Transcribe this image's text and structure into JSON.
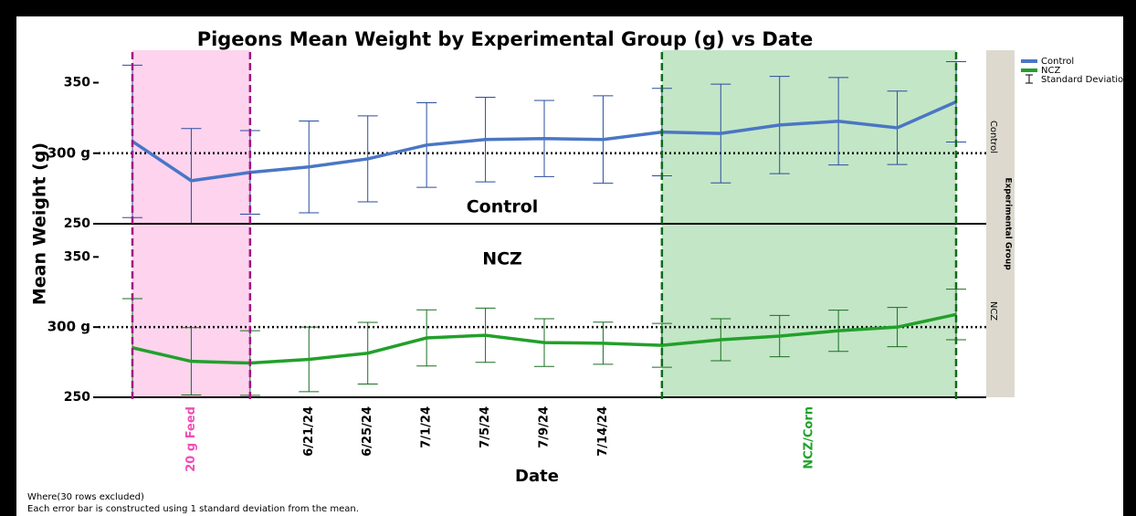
{
  "chart_data": {
    "type": "line",
    "title": "Pigeons Mean Weight by Experimental Group (g) vs Date",
    "x_label": "Date",
    "y_label": "Mean Weight (g)",
    "group_label": "Experimental Group",
    "error_label": "Standard Deviation",
    "categories": [
      null,
      null,
      null,
      "6/21/24",
      "6/25/24",
      "7/1/24",
      "7/5/24",
      "7/9/24",
      "7/14/24",
      null,
      null,
      null,
      null,
      null,
      null
    ],
    "ylim": [
      250,
      373
    ],
    "yticks": [
      250,
      {
        "value": 300,
        "label": "300 g"
      },
      350
    ],
    "reference_line": 300,
    "regions": [
      {
        "label": "20 g Feed",
        "start": 0,
        "end": 2,
        "color": "#fdd3ee",
        "line_color": "#a01683",
        "label_color": "#ee4fb6"
      },
      {
        "label": "NCZ/Corn",
        "start": 9,
        "end": 14,
        "color": "#c3e6c6",
        "line_color": "#0f6b1c",
        "label_color": "#1fa22a"
      }
    ],
    "series": [
      {
        "name": "Control",
        "color": "#4a76c4",
        "bar_color": "#2b4d9e",
        "values": [
          308.4,
          280.5,
          286.4,
          290.3,
          296,
          305.8,
          309.7,
          310.4,
          309.7,
          315,
          314,
          320,
          322.7,
          318,
          336.4
        ],
        "errors": [
          54,
          37,
          29.6,
          32.5,
          30.5,
          30,
          30,
          27,
          31,
          31,
          35,
          34.5,
          31,
          26,
          28.5
        ]
      },
      {
        "name": "NCZ",
        "color": "#22a02a",
        "bar_color": "#1a6e22",
        "values": [
          285.3,
          275.6,
          274.4,
          277,
          281.4,
          292.3,
          294.2,
          289,
          288.5,
          287,
          291,
          293.6,
          297.4,
          300,
          309
        ],
        "errors": [
          35,
          24,
          23,
          23,
          22,
          20,
          19.3,
          17,
          15,
          15.6,
          15,
          14.7,
          14.7,
          14,
          18
        ]
      }
    ],
    "notes": [
      "Where(30 rows excluded)",
      "Each error bar is constructed using 1 standard deviation from the mean."
    ]
  }
}
